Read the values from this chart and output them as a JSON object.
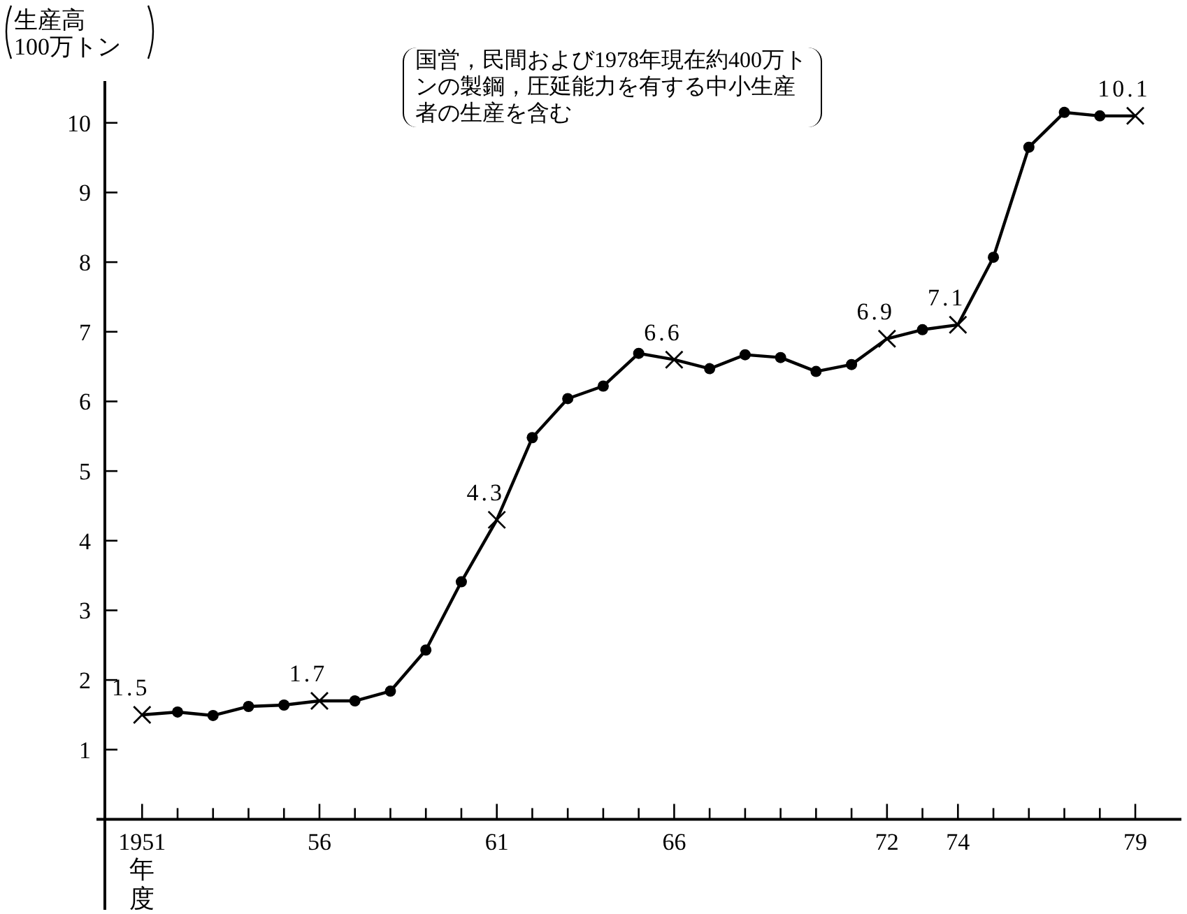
{
  "chart_data": {
    "type": "line",
    "ylabel": "生産高 100万トン",
    "xlabel": "年度",
    "annotations": [
      "国営，民間および1978年現在約400万トンの製鋼，圧延能力を有する中小生産者の生産を含む"
    ],
    "xlim": [
      1949.95,
      1980.3
    ],
    "xticks": [
      1951,
      {
        "value": 1952,
        "label": null
      },
      {
        "value": 1953,
        "label": null
      },
      {
        "value": 1954,
        "label": null
      },
      {
        "value": 1955,
        "label": null
      },
      {
        "value": 1956,
        "label": "56"
      },
      {
        "value": 1957,
        "label": null
      },
      {
        "value": 1958,
        "label": null
      },
      {
        "value": 1959,
        "label": null
      },
      {
        "value": 1960,
        "label": null
      },
      {
        "value": 1961,
        "label": "61"
      },
      {
        "value": 1962,
        "label": null
      },
      {
        "value": 1963,
        "label": null
      },
      {
        "value": 1964,
        "label": null
      },
      {
        "value": 1965,
        "label": null
      },
      {
        "value": 1966,
        "label": "66"
      },
      {
        "value": 1967,
        "label": null
      },
      {
        "value": 1968,
        "label": null
      },
      {
        "value": 1969,
        "label": null
      },
      {
        "value": 1970,
        "label": null
      },
      {
        "value": 1971,
        "label": null
      },
      {
        "value": 1972,
        "label": "72"
      },
      {
        "value": 1973,
        "label": null
      },
      {
        "value": 1974,
        "label": "74"
      },
      {
        "value": 1975,
        "label": null
      },
      {
        "value": 1976,
        "label": null
      },
      {
        "value": 1977,
        "label": null
      },
      {
        "value": 1978,
        "label": null
      },
      {
        "value": 1979,
        "label": "79"
      }
    ],
    "ylim": [
      -1.3,
      10.6
    ],
    "yticks": [
      1,
      2,
      3,
      4,
      5,
      6,
      7,
      8,
      9,
      10
    ],
    "grid": false,
    "x": [
      1951,
      1952,
      1953,
      1954,
      1955,
      1956,
      1957,
      1958,
      1959,
      1960,
      1961,
      1962,
      1963,
      1964,
      1965,
      1966,
      1967,
      1968,
      1969,
      1970,
      1971,
      1972,
      1973,
      1974,
      1975,
      1976,
      1977,
      1978,
      1979
    ],
    "series": [
      {
        "type": "line",
        "color": "#000000",
        "marker": "none",
        "line_style": "solid",
        "values": [
          1.5,
          1.54,
          1.49,
          1.62,
          1.64,
          1.7,
          1.7,
          1.84,
          2.43,
          3.41,
          4.3,
          5.48,
          6.04,
          6.22,
          6.69,
          6.6,
          6.47,
          6.67,
          6.63,
          6.43,
          6.53,
          6.9,
          7.03,
          7.1,
          8.07,
          9.65,
          10.15,
          10.1,
          10.1
        ]
      },
      {
        "type": "scatter",
        "color": "#000000",
        "marker": "circle",
        "x": [
          1952,
          1953,
          1954,
          1955,
          1957,
          1958,
          1959,
          1960,
          1962,
          1963,
          1964,
          1965,
          1967,
          1968,
          1969,
          1970,
          1971,
          1973,
          1975,
          1976,
          1977,
          1978
        ],
        "values": [
          1.54,
          1.49,
          1.62,
          1.64,
          1.7,
          1.84,
          2.43,
          3.41,
          5.48,
          6.04,
          6.22,
          6.69,
          6.47,
          6.67,
          6.63,
          6.43,
          6.53,
          7.03,
          8.07,
          9.65,
          10.15,
          10.1
        ]
      },
      {
        "type": "scatter",
        "color": "#000000",
        "marker": "cross",
        "x": [
          1951,
          1956,
          1961,
          1966,
          1972,
          1974,
          1979
        ],
        "values": [
          1.5,
          1.7,
          4.3,
          6.6,
          6.9,
          7.1,
          10.1
        ],
        "value_labels": [
          "1.5",
          "1.7",
          "4.3",
          "6.6",
          "6.9",
          "7.1",
          "10.1"
        ]
      }
    ]
  }
}
